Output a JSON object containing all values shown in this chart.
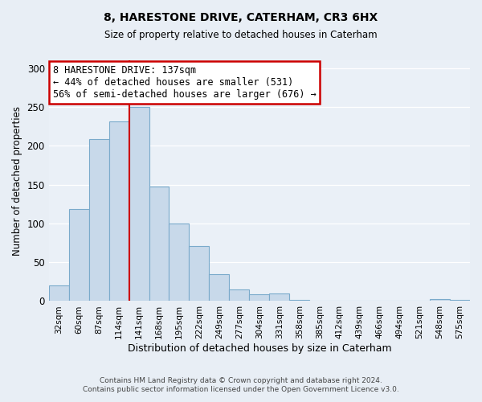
{
  "title": "8, HARESTONE DRIVE, CATERHAM, CR3 6HX",
  "subtitle": "Size of property relative to detached houses in Caterham",
  "bar_labels": [
    "32sqm",
    "60sqm",
    "87sqm",
    "114sqm",
    "141sqm",
    "168sqm",
    "195sqm",
    "222sqm",
    "249sqm",
    "277sqm",
    "304sqm",
    "331sqm",
    "358sqm",
    "385sqm",
    "412sqm",
    "439sqm",
    "466sqm",
    "494sqm",
    "521sqm",
    "548sqm",
    "575sqm"
  ],
  "bar_values": [
    20,
    119,
    209,
    231,
    250,
    147,
    100,
    71,
    35,
    15,
    9,
    10,
    2,
    0,
    0,
    0,
    0,
    0,
    0,
    3,
    1
  ],
  "bar_color": "#c8d9ea",
  "bar_edge_color": "#7aaacb",
  "marker_bin_index": 4,
  "marker_color": "#cc0000",
  "ylabel": "Number of detached properties",
  "xlabel": "Distribution of detached houses by size in Caterham",
  "ylim": [
    0,
    310
  ],
  "yticks": [
    0,
    50,
    100,
    150,
    200,
    250,
    300
  ],
  "annotation_title": "8 HARESTONE DRIVE: 137sqm",
  "annotation_line1": "← 44% of detached houses are smaller (531)",
  "annotation_line2": "56% of semi-detached houses are larger (676) →",
  "annotation_box_color": "#ffffff",
  "annotation_box_edge_color": "#cc0000",
  "footer1": "Contains HM Land Registry data © Crown copyright and database right 2024.",
  "footer2": "Contains public sector information licensed under the Open Government Licence v3.0.",
  "bg_color": "#e8eef5",
  "plot_bg_color": "#eaf0f7"
}
